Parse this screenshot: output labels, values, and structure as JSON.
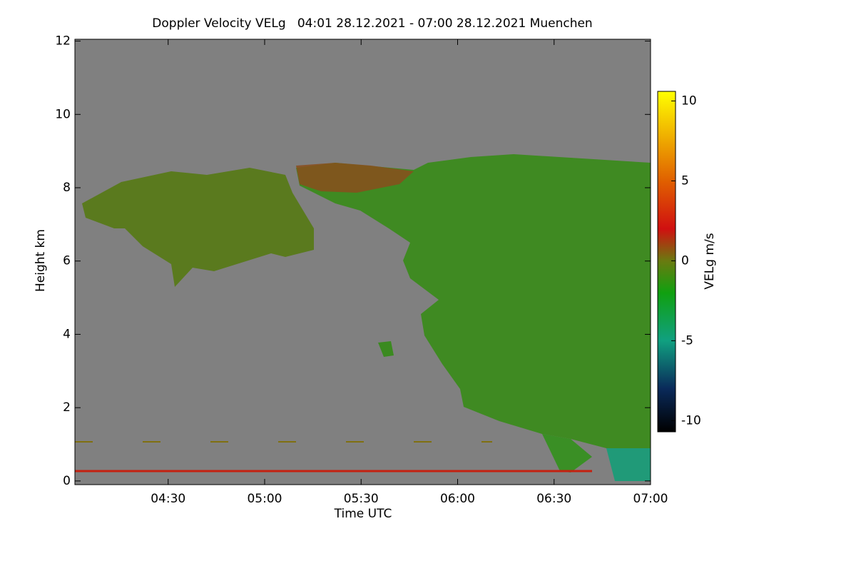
{
  "chart_data": {
    "type": "heatmap",
    "title": "Doppler Velocity VELg   04:01 28.12.2021 - 07:00 28.12.2021 Muenchen",
    "x_label": "Time UTC",
    "y_label": "Height km",
    "xlim": [
      4.0167,
      7.0
    ],
    "xticks": [
      {
        "value": 4.5,
        "label": "04:30"
      },
      {
        "value": 5.0,
        "label": "05:00"
      },
      {
        "value": 5.5,
        "label": "05:30"
      },
      {
        "value": 6.0,
        "label": "06:00"
      },
      {
        "value": 6.5,
        "label": "06:30"
      },
      {
        "value": 7.0,
        "label": "07:00"
      }
    ],
    "ylim": [
      -0.1,
      12.05
    ],
    "yticks": [
      0,
      2,
      4,
      6,
      8,
      10,
      12
    ],
    "colorbar_label": "VELg m/s",
    "colorbar_lim": [
      -10.7,
      10.6
    ],
    "colorbar_ticks": [
      10,
      5,
      0,
      -5,
      -10
    ],
    "colorscale": [
      {
        "value": -10.7,
        "color": "#000000"
      },
      {
        "value": -8,
        "color": "#0a2a5a"
      },
      {
        "value": -5,
        "color": "#10a080"
      },
      {
        "value": -2,
        "color": "#10a010"
      },
      {
        "value": 0,
        "color": "#6a7a10"
      },
      {
        "value": 2,
        "color": "#d01010"
      },
      {
        "value": 5,
        "color": "#e06000"
      },
      {
        "value": 10.6,
        "color": "#ffff00"
      }
    ],
    "background_color": "#808080"
  }
}
